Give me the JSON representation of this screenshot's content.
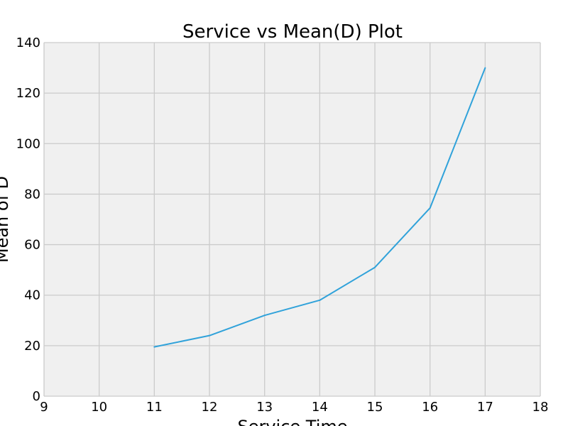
{
  "chart_data": {
    "type": "line",
    "title": "Service vs Mean(D) Plot",
    "xlabel": "Service Time",
    "ylabel": "Mean of D",
    "xlim": [
      9,
      18
    ],
    "ylim": [
      0,
      140
    ],
    "xticks": [
      9,
      10,
      11,
      12,
      13,
      14,
      15,
      16,
      17,
      18
    ],
    "yticks": [
      0,
      20,
      40,
      60,
      80,
      100,
      120,
      140
    ],
    "grid": true,
    "series": [
      {
        "color": "#30a2da",
        "x": [
          11,
          12,
          13,
          14,
          15,
          16,
          17
        ],
        "y": [
          19.5,
          24.0,
          32.0,
          38.0,
          51.0,
          74.5,
          130.0
        ]
      }
    ],
    "colors": {
      "plot_background": "#f0f0f0",
      "grid": "#cbcbcb"
    }
  }
}
